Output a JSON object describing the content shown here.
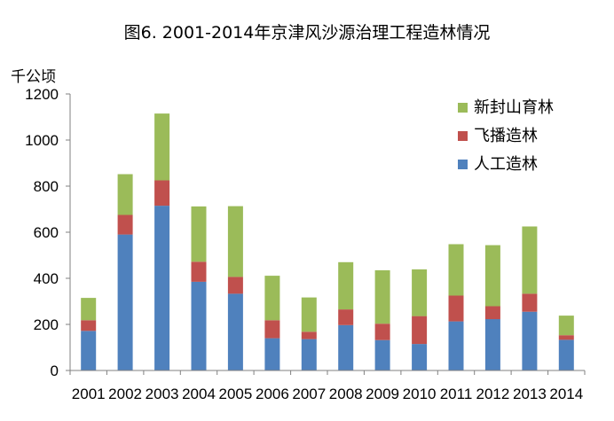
{
  "chart_data": {
    "type": "bar",
    "stacked": true,
    "title": "图6. 2001-2014年京津风沙源治理工程造林情况",
    "ylabel": "千公顷",
    "xlabel": "",
    "ylim": [
      0,
      1200
    ],
    "yticks": [
      0,
      200,
      400,
      600,
      800,
      1000,
      1200
    ],
    "grid": false,
    "legend_position": "top-right",
    "categories": [
      "2001",
      "2002",
      "2003",
      "2004",
      "2005",
      "2006",
      "2007",
      "2008",
      "2009",
      "2010",
      "2011",
      "2012",
      "2013",
      "2014"
    ],
    "series": [
      {
        "name": "人工造林",
        "color": "#4F81BD",
        "values": [
          172,
          590,
          715,
          385,
          333,
          140,
          136,
          197,
          132,
          115,
          213,
          223,
          255,
          133
        ]
      },
      {
        "name": "飞播造林",
        "color": "#C0504D",
        "values": [
          46,
          85,
          110,
          87,
          73,
          78,
          32,
          68,
          71,
          121,
          112,
          56,
          78,
          20
        ]
      },
      {
        "name": "新封山育林",
        "color": "#9BBB59",
        "values": [
          97,
          177,
          290,
          240,
          307,
          193,
          149,
          205,
          232,
          203,
          223,
          265,
          292,
          85
        ]
      }
    ]
  }
}
